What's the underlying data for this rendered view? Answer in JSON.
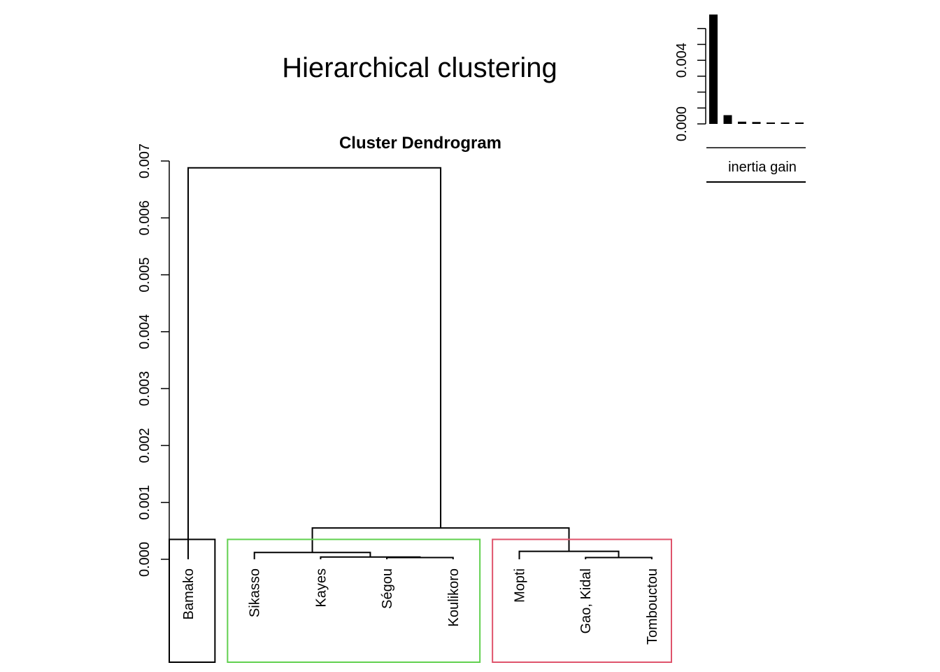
{
  "figure": {
    "title": "Hierarchical clustering"
  },
  "chart_data": [
    {
      "type": "dendrogram",
      "title": "Cluster Dendrogram",
      "ylabel": "",
      "ylim": [
        0,
        0.007
      ],
      "yticks": [
        "0.000",
        "0.001",
        "0.002",
        "0.003",
        "0.004",
        "0.005",
        "0.006",
        "0.007"
      ],
      "ytick_values": [
        0,
        0.001,
        0.002,
        0.003,
        0.004,
        0.005,
        0.006,
        0.007
      ],
      "leaves": [
        "Bamako",
        "Sikasso",
        "Kayes",
        "Ségou",
        "Koulikoro",
        "Mopti",
        "Gao, Kidal",
        "Tombouctou"
      ],
      "merges": [
        {
          "left": "Ségou",
          "right": "Koulikoro",
          "height": 3e-05
        },
        {
          "left": "Kayes",
          "right": "Ségou+Koulikoro",
          "height": 4e-05
        },
        {
          "left": "Gao, Kidal",
          "right": "Tombouctou",
          "height": 3e-05
        },
        {
          "left": "Sikasso",
          "right": "Kayes+Ségou+Koulikoro",
          "height": 0.00012
        },
        {
          "left": "Mopti",
          "right": "Gao, Kidal+Tombouctou",
          "height": 0.00014
        },
        {
          "left": "cluster-green",
          "right": "cluster-red",
          "height": 0.00055
        },
        {
          "left": "Bamako",
          "right": "rest",
          "height": 0.00688
        }
      ],
      "cut_height": 0.00035,
      "clusters": [
        {
          "members": [
            "Bamako"
          ],
          "color": "#000000"
        },
        {
          "members": [
            "Sikasso",
            "Kayes",
            "Ségou",
            "Koulikoro"
          ],
          "color": "#61D04F"
        },
        {
          "members": [
            "Mopti",
            "Gao, Kidal",
            "Tombouctou"
          ],
          "color": "#DF536B"
        }
      ]
    },
    {
      "type": "bar",
      "title": "",
      "xlabel": "inertia gain",
      "ylabel": "",
      "ylim": [
        0,
        0.007
      ],
      "yticks": [
        "0.000",
        "0.004"
      ],
      "ytick_values": [
        0,
        0.004
      ],
      "values": [
        0.00688,
        0.00055,
        0.00014,
        0.00012,
        4e-05,
        3e-05,
        3e-05
      ],
      "color": "#000000"
    }
  ]
}
